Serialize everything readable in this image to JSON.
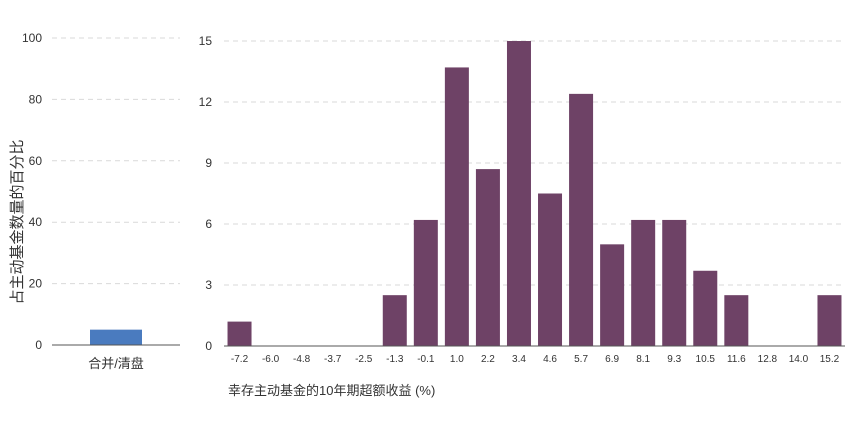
{
  "chart_data": [
    {
      "type": "bar",
      "ylabel": "占主动基金数量的百分比",
      "ylim": [
        0,
        100
      ],
      "yticks": [
        0,
        20,
        40,
        60,
        80,
        100
      ],
      "grid": true,
      "categories": [
        "合并/清盘"
      ],
      "values": [
        5
      ],
      "color": "#4a7bbf"
    },
    {
      "type": "bar",
      "xlabel": "幸存主动基金的10年期超额收益 (%)",
      "ylim": [
        0,
        15
      ],
      "yticks": [
        0,
        3,
        6,
        9,
        12,
        15
      ],
      "grid": true,
      "categories": [
        "-7.2",
        "-6.0",
        "-4.8",
        "-3.7",
        "-2.5",
        "-1.3",
        "-0.1",
        "1.0",
        "2.2",
        "3.4",
        "4.6",
        "5.7",
        "6.9",
        "8.1",
        "9.3",
        "10.5",
        "11.6",
        "12.8",
        "14.0",
        "15.2"
      ],
      "values": [
        1.2,
        0,
        0,
        0,
        0,
        2.5,
        6.2,
        13.7,
        8.7,
        15,
        7.5,
        12.4,
        5,
        6.2,
        6.2,
        3.7,
        2.5,
        0,
        0,
        2.5
      ],
      "color": "#6e4266"
    }
  ]
}
